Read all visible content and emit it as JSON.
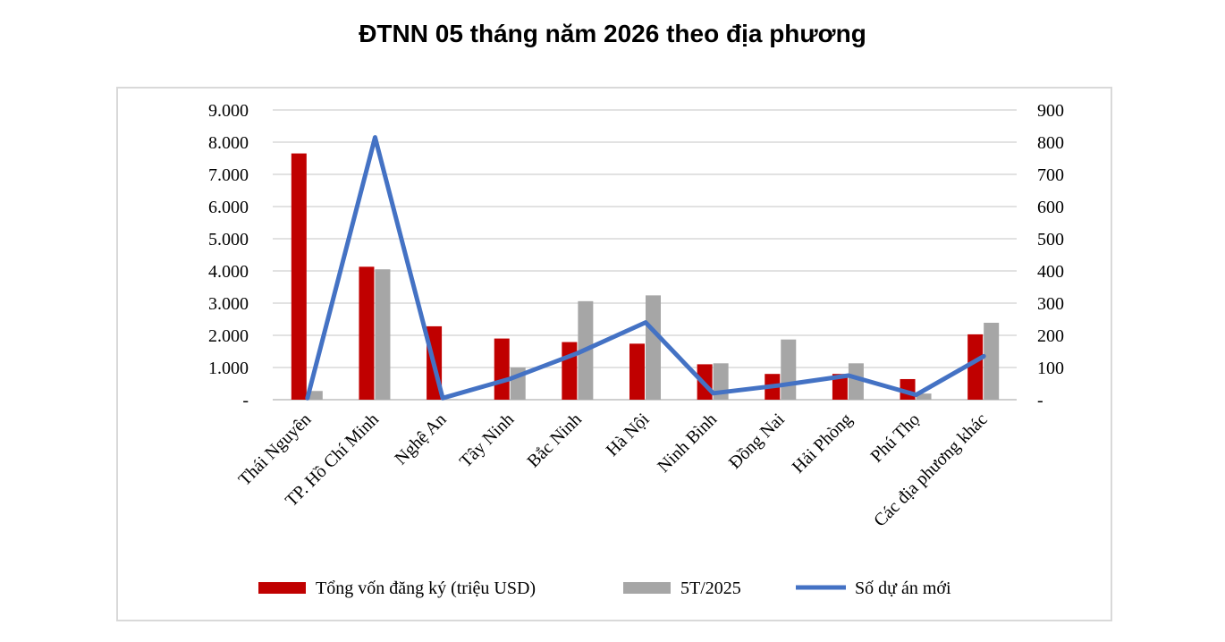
{
  "title": "ĐTNN 05 tháng năm 2026 theo địa phương",
  "chart_data": {
    "type": "bar",
    "categories": [
      "Thái Nguyên",
      "TP. Hồ Chí Minh",
      "Nghệ An",
      "Tây Ninh",
      "Bắc Ninh",
      "Hà Nội",
      "Ninh Bình",
      "Đồng Nai",
      "Hải Phòng",
      "Phú Thọ",
      "Các địa phương khác"
    ],
    "series": [
      {
        "name": "Tổng vốn đăng ký (triệu USD)",
        "kind": "bar",
        "axis": "left",
        "color": "#c00000",
        "values": [
          7650,
          4130,
          2280,
          1900,
          1790,
          1740,
          1100,
          800,
          800,
          640,
          2030
        ]
      },
      {
        "name": "5T/2025",
        "kind": "bar",
        "axis": "left",
        "color": "#a6a6a6",
        "values": [
          270,
          4050,
          10,
          1000,
          3060,
          3240,
          1130,
          1870,
          1130,
          190,
          2390
        ]
      },
      {
        "name": "Số dự án mới",
        "kind": "line",
        "axis": "right",
        "color": "#4472c4",
        "values": [
          5,
          815,
          5,
          65,
          145,
          240,
          20,
          45,
          75,
          15,
          135
        ]
      }
    ],
    "y_left": {
      "ylim": [
        0,
        9000
      ],
      "ticks": [
        "-",
        "1.000",
        "2.000",
        "3.000",
        "4.000",
        "5.000",
        "6.000",
        "7.000",
        "8.000",
        "9.000"
      ]
    },
    "y_right": {
      "ylim": [
        0,
        900
      ],
      "ticks": [
        "-",
        "100",
        "200",
        "300",
        "400",
        "500",
        "600",
        "700",
        "800",
        "900"
      ]
    },
    "grid": true,
    "legend_position": "bottom"
  }
}
